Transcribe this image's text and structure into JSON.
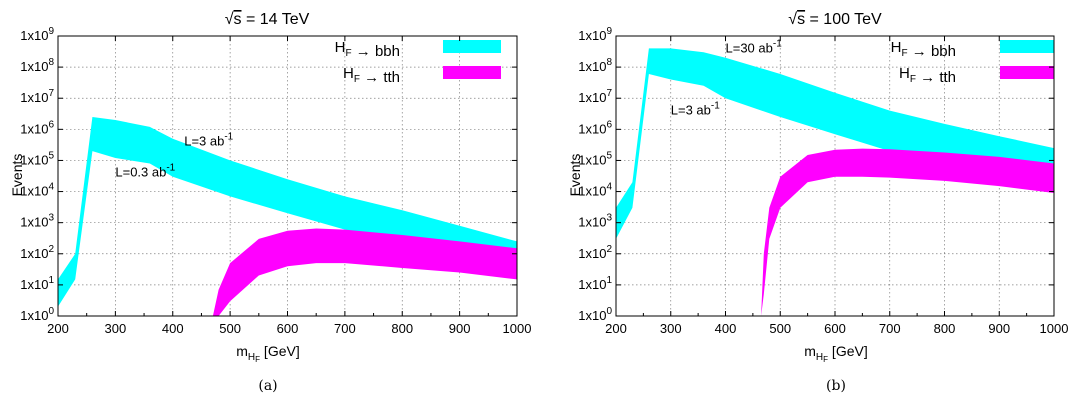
{
  "captions": [
    "(a)",
    "(b)"
  ],
  "legend_labels": [
    "H_F → bbh",
    "H_F → tth"
  ],
  "colors": {
    "bbh": "#00ffff",
    "tth": "#ff00ff"
  },
  "chart_data": [
    {
      "type": "area",
      "title": "√s = 14 TeV",
      "title_parts": {
        "root": "√",
        "var": "s",
        "rest": " = 14 TeV"
      },
      "xlabel": "m_{H_F} [GeV]",
      "ylabel": "Events",
      "xlim": [
        200,
        1000
      ],
      "ylim": [
        1,
        1000000000
      ],
      "yscale": "log",
      "xticks": [
        "200",
        "300",
        "400",
        "500",
        "600",
        "700",
        "800",
        "900",
        "1000"
      ],
      "yticks": [
        "1x10^0",
        "1x10^1",
        "1x10^2",
        "1x10^3",
        "1x10^4",
        "1x10^5",
        "1x10^6",
        "1x10^7",
        "1x10^8",
        "1x10^9"
      ],
      "grid": true,
      "legend_position": "top-right",
      "annotations": [
        {
          "text": "L=3 ab^-1",
          "x": 420,
          "y": 300000
        },
        {
          "text": "L=0.3 ab^-1",
          "x": 300,
          "y": 30000
        }
      ],
      "series": [
        {
          "name": "H_F → bbh",
          "x": [
            200,
            230,
            260,
            300,
            360,
            400,
            500,
            600,
            700,
            800,
            900,
            1000
          ],
          "lower": [
            2,
            15,
            200000,
            120000,
            80000,
            30000,
            7000,
            2000,
            600,
            200,
            60,
            20
          ],
          "upper": [
            15,
            100,
            2500000,
            2000000,
            1200000,
            500000,
            100000,
            25000,
            7000,
            2500,
            800,
            250
          ]
        },
        {
          "name": "H_F → tth",
          "x": [
            470,
            480,
            500,
            550,
            600,
            650,
            700,
            800,
            900,
            1000
          ],
          "lower": [
            1,
            1,
            3,
            20,
            40,
            50,
            50,
            35,
            25,
            15
          ],
          "upper": [
            1,
            7,
            50,
            300,
            550,
            650,
            600,
            400,
            250,
            150
          ]
        }
      ]
    },
    {
      "type": "area",
      "title": "√s = 100 TeV",
      "title_parts": {
        "root": "√",
        "var": "s",
        "rest": " = 100 TeV"
      },
      "xlabel": "m_{H_F} [GeV]",
      "ylabel": "Events",
      "xlim": [
        200,
        1000
      ],
      "ylim": [
        1,
        1000000000
      ],
      "yscale": "log",
      "xticks": [
        "200",
        "300",
        "400",
        "500",
        "600",
        "700",
        "800",
        "900",
        "1000"
      ],
      "yticks": [
        "1x10^0",
        "1x10^1",
        "1x10^2",
        "1x10^3",
        "1x10^4",
        "1x10^5",
        "1x10^6",
        "1x10^7",
        "1x10^8",
        "1x10^9"
      ],
      "grid": true,
      "legend_position": "top-right",
      "annotations": [
        {
          "text": "L=30 ab^-1",
          "x": 400,
          "y": 300000000
        },
        {
          "text": "L=3 ab^-1",
          "x": 300,
          "y": 3000000
        }
      ],
      "series": [
        {
          "name": "H_F → bbh",
          "x": [
            200,
            230,
            260,
            300,
            360,
            400,
            500,
            600,
            700,
            800,
            900,
            1000
          ],
          "lower": [
            300,
            3000,
            60000000,
            40000000,
            25000000,
            10000000,
            2500000,
            700000,
            200000,
            80000,
            30000,
            15000
          ],
          "upper": [
            3000,
            20000,
            400000000,
            400000000,
            300000000,
            200000000,
            60000000,
            15000000,
            4000000,
            1500000,
            600000,
            250000
          ]
        },
        {
          "name": "H_F → tth",
          "x": [
            465,
            470,
            480,
            500,
            550,
            600,
            650,
            700,
            800,
            900,
            1000
          ],
          "lower": [
            1,
            5,
            300,
            3000,
            20000,
            30000,
            30000,
            28000,
            22000,
            15000,
            9000
          ],
          "upper": [
            1,
            100,
            3000,
            30000,
            150000,
            220000,
            240000,
            230000,
            180000,
            130000,
            80000
          ]
        }
      ]
    }
  ]
}
